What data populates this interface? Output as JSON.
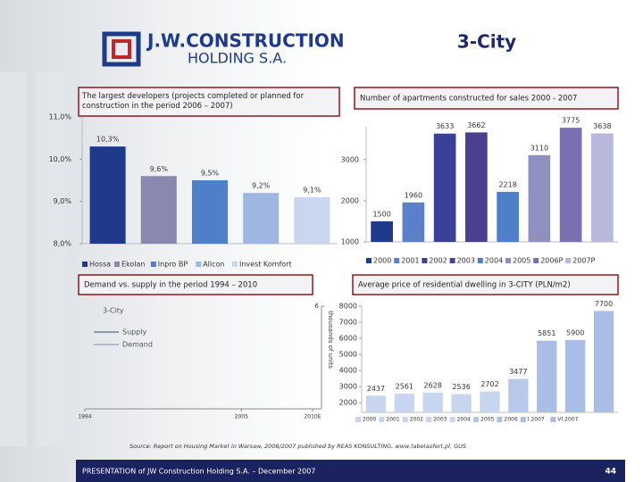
{
  "header": {
    "logo_line1": "J.W.CONSTRUCTION",
    "logo_line2": "HOLDING S.A.",
    "title": "3-City"
  },
  "chart_data": [
    {
      "type": "bar",
      "title": "The largest developers (projects completed or planned for construction in the period 2006 – 2007)",
      "categories": [
        "Hossa",
        "Ekolan",
        "Inpro BP",
        "Allcon",
        "Invest Komfort"
      ],
      "values": [
        10.3,
        9.6,
        9.5,
        9.2,
        9.1
      ],
      "value_labels": [
        "10,3%",
        "9,6%",
        "9,5%",
        "9,2%",
        "9,1%"
      ],
      "colors": [
        "#1f3a8a",
        "#8a87b0",
        "#4f7fc9",
        "#9fb6e0",
        "#c9d6ee"
      ],
      "ylim": [
        8,
        11
      ],
      "yticks": [
        {
          "value": 8,
          "label": "8,0%"
        },
        {
          "value": 9,
          "label": "9,0%"
        },
        {
          "value": 10,
          "label": "10,0%"
        },
        {
          "value": 11,
          "label": "11,0%"
        }
      ]
    },
    {
      "type": "bar",
      "title": "Number of apartments constructed for sales 2000 - 2007",
      "categories": [
        "2000",
        "2001",
        "2002",
        "2003",
        "2004",
        "2005",
        "2006P",
        "2007P"
      ],
      "values": [
        1500,
        1960,
        3633,
        3662,
        2218,
        3110,
        3775,
        3638
      ],
      "colors": [
        "#1f3a8a",
        "#5b7fc9",
        "#3a3f98",
        "#4b3f8f",
        "#4f7fc9",
        "#8f8fc0",
        "#7a6fb0",
        "#b8b8dc"
      ],
      "ylim": [
        1000,
        3800
      ],
      "yticks": [
        1000,
        2000,
        3000
      ]
    },
    {
      "type": "line",
      "title": "Demand vs. supply in the period 1994 – 2010",
      "legend_title": "3-City",
      "y_label": "thousands of units",
      "x": [
        1994,
        2005,
        2010
      ],
      "xlim": [
        1994,
        2010
      ],
      "xticks": [
        1994,
        2005,
        {
          "value": 2010,
          "label": "2010E"
        }
      ],
      "ylim": [
        0,
        6
      ],
      "yticks": [
        6
      ],
      "series": [
        {
          "name": "Supply",
          "color": "#6f7f9f",
          "values": [
            null,
            null,
            null
          ]
        },
        {
          "name": "Demand",
          "color": "#a3aec2",
          "values": [
            null,
            null,
            null
          ]
        }
      ]
    },
    {
      "type": "bar",
      "title": "Average price of residential dwelling in 3-CITY  (PLN/m2)",
      "categories": [
        "2000",
        "2001",
        "2002",
        "2003",
        "2004",
        "2005",
        "2006",
        "I.2007",
        "VI.2007"
      ],
      "values": [
        2437,
        2561,
        2628,
        2536,
        2702,
        3477,
        5851,
        5900,
        7700
      ],
      "colors": [
        "#c8d5ee",
        "#c8d5ee",
        "#c8d5ee",
        "#c8d5ee",
        "#c8d5ee",
        "#b7c8ea",
        "#a9bde6",
        "#a9bde6",
        "#a9bde6"
      ],
      "ylim": [
        1400,
        8000
      ],
      "yticks": [
        2000,
        3000,
        4000,
        5000,
        6000,
        7000,
        8000
      ]
    }
  ],
  "footer": {
    "source": "Source: Report on Housing Market in Warsaw, 2006/2007 published by REAS KONSULTING, www.tabelaofert.pl, GUS",
    "presentation": "PRESENTATION of JW Construction Holding S.A. – December 2007",
    "page": "44"
  }
}
